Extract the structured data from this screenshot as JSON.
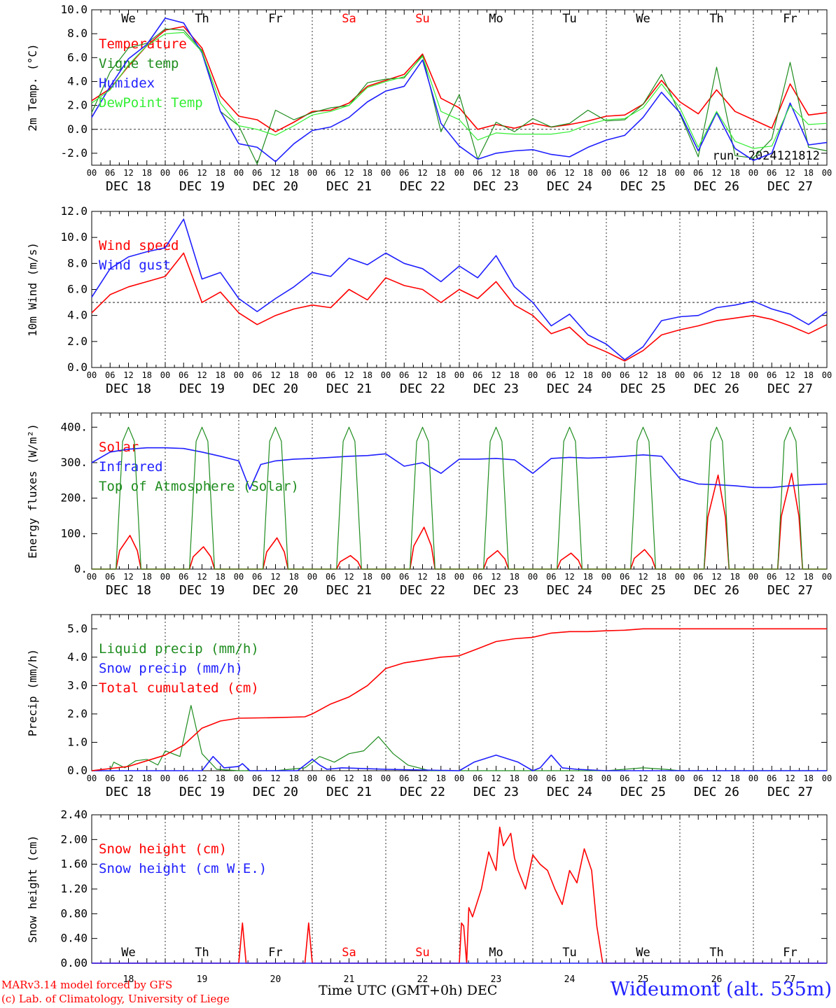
{
  "colors": {
    "red": "#ff0000",
    "green": "#1e8c1e",
    "blue": "#1f1fff",
    "lightgreen": "#33ee33",
    "black": "#000000"
  },
  "day_names": [
    "We",
    "Th",
    "Fr",
    "Sa",
    "Su",
    "Mo",
    "Tu",
    "We",
    "Th",
    "Fr"
  ],
  "weekend_days": [
    3,
    4
  ],
  "hour_labels": [
    "00",
    "06",
    "12",
    "18"
  ],
  "last_hour_label": "00",
  "month": "DEC",
  "dates": [
    "18",
    "19",
    "20",
    "21",
    "22",
    "23",
    "24",
    "25",
    "26",
    "27"
  ],
  "footer": {
    "credit_line1": "MARv3.14 model forced by GFS",
    "credit_line2": "(c) Lab. of Climatology, University of Liege",
    "station": "Wideumont (alt. 535m)",
    "xaxis_title": "Time UTC (GMT+0h)",
    "xaxis_month": "DEC"
  },
  "chart_data": [
    {
      "type": "line",
      "ylabel": "2m Temp. (°C)",
      "ylim": [
        -3,
        10
      ],
      "yticks": [
        "10.0",
        "8.0",
        "6.0",
        "4.0",
        "2.0",
        "0.0",
        "-2.0"
      ],
      "ytick_values": [
        10,
        8,
        6,
        4,
        2,
        0,
        -2
      ],
      "xlim_days": [
        0,
        10
      ],
      "reference_line": 0,
      "day_labels_top": true,
      "run_label": "run: 2024121812",
      "series": [
        {
          "name": "Temperature",
          "color": "red",
          "x": [
            0,
            0.25,
            0.5,
            0.75,
            1,
            1.25,
            1.5,
            1.75,
            2,
            2.25,
            2.5,
            2.75,
            3,
            3.25,
            3.5,
            3.75,
            4,
            4.25,
            4.5,
            4.75,
            5,
            5.25,
            5.5,
            5.75,
            6,
            6.25,
            6.5,
            6.75,
            7,
            7.25,
            7.5,
            7.75,
            8,
            8.25,
            8.5,
            8.75,
            9,
            9.25,
            9.5,
            9.75,
            10
          ],
          "y": [
            2.4,
            3.4,
            5.3,
            7.0,
            8.3,
            8.6,
            6.8,
            2.8,
            1.1,
            0.8,
            -0.2,
            0.6,
            1.5,
            1.6,
            2.2,
            3.6,
            4.1,
            4.6,
            6.3,
            2.6,
            1.8,
            0.0,
            0.4,
            0.1,
            0.5,
            0.2,
            0.4,
            0.7,
            1.1,
            1.2,
            2.1,
            4.1,
            2.3,
            1.3,
            3.3,
            1.5,
            0.8,
            0.1,
            3.8,
            1.2,
            1.4
          ]
        },
        {
          "name": "Vigne temp",
          "color": "green",
          "x": [
            0,
            0.25,
            0.5,
            0.75,
            1,
            1.25,
            1.5,
            1.75,
            2,
            2.25,
            2.5,
            2.75,
            3,
            3.25,
            3.5,
            3.75,
            4,
            4.25,
            4.5,
            4.75,
            5,
            5.25,
            5.5,
            5.75,
            6,
            6.25,
            6.5,
            6.75,
            7,
            7.25,
            7.5,
            7.75,
            8,
            8.25,
            8.5,
            8.75,
            9,
            9.25,
            9.5,
            9.75,
            10
          ],
          "y": [
            1.4,
            4.8,
            6.8,
            7.2,
            8.4,
            8.3,
            6.6,
            1.5,
            0.3,
            -2.9,
            1.6,
            0.8,
            1.4,
            1.8,
            2.0,
            3.9,
            4.2,
            4.3,
            6.2,
            -0.2,
            2.9,
            -2.5,
            0.6,
            -0.2,
            0.9,
            0.2,
            0.5,
            1.6,
            0.7,
            0.8,
            2.1,
            4.6,
            1.3,
            -2.3,
            5.2,
            -2.2,
            -2.4,
            -0.8,
            5.6,
            -1.5,
            -1.8
          ]
        },
        {
          "name": "Humidex",
          "color": "blue",
          "x": [
            0,
            0.25,
            0.5,
            0.75,
            1,
            1.25,
            1.5,
            1.75,
            2,
            2.25,
            2.5,
            2.75,
            3,
            3.25,
            3.5,
            3.75,
            4,
            4.25,
            4.5,
            4.75,
            5,
            5.25,
            5.5,
            5.75,
            6,
            6.25,
            6.5,
            6.75,
            7,
            7.25,
            7.5,
            7.75,
            8,
            8.25,
            8.5,
            8.75,
            9,
            9.25,
            9.5,
            9.75,
            10
          ],
          "y": [
            1.0,
            3.6,
            5.9,
            7.1,
            9.3,
            8.9,
            6.4,
            1.5,
            -1.2,
            -1.5,
            -2.7,
            -1.2,
            -0.1,
            0.2,
            1.0,
            2.3,
            3.2,
            3.6,
            5.8,
            0.5,
            -1.4,
            -2.5,
            -2.0,
            -1.8,
            -1.7,
            -2.1,
            -2.3,
            -1.5,
            -0.9,
            -0.5,
            1.0,
            3.1,
            1.4,
            -1.8,
            1.4,
            -1.6,
            -2.6,
            -2.0,
            2.2,
            -1.3,
            -1.1
          ]
        },
        {
          "name": "DewPoint Temp",
          "color": "lightgreen",
          "x": [
            0,
            0.25,
            0.5,
            0.75,
            1,
            1.25,
            1.5,
            1.75,
            2,
            2.25,
            2.5,
            2.75,
            3,
            3.25,
            3.5,
            3.75,
            4,
            4.25,
            4.5,
            4.75,
            5,
            5.25,
            5.5,
            5.75,
            6,
            6.25,
            6.5,
            6.75,
            7,
            7.25,
            7.5,
            7.75,
            8,
            8.25,
            8.5,
            8.75,
            9,
            9.25,
            9.5,
            9.75,
            10
          ],
          "y": [
            2.2,
            3.3,
            5.4,
            7.0,
            8.0,
            8.1,
            6.5,
            2.2,
            0.3,
            0.0,
            -0.5,
            0.3,
            1.2,
            1.5,
            2.0,
            3.5,
            4.0,
            4.4,
            6.1,
            1.5,
            0.8,
            -0.9,
            -0.3,
            -0.4,
            -0.4,
            -0.4,
            -0.2,
            0.4,
            0.8,
            0.9,
            1.8,
            3.8,
            1.8,
            -1.5,
            1.5,
            -1.0,
            -1.6,
            -1.4,
            2.0,
            0.4,
            0.5
          ]
        }
      ]
    },
    {
      "type": "line",
      "ylabel": "10m Wind (m/s)",
      "ylim": [
        0,
        12
      ],
      "yticks": [
        "12.0",
        "10.0",
        "8.0",
        "6.0",
        "4.0",
        "2.0",
        "0.0"
      ],
      "ytick_values": [
        12,
        10,
        8,
        6,
        4,
        2,
        0
      ],
      "xlim_days": [
        0,
        10
      ],
      "reference_line": 5,
      "series": [
        {
          "name": "Wind speed",
          "color": "red",
          "x": [
            0,
            0.25,
            0.5,
            0.75,
            1,
            1.25,
            1.5,
            1.75,
            2,
            2.25,
            2.5,
            2.75,
            3,
            3.25,
            3.5,
            3.75,
            4,
            4.25,
            4.5,
            4.75,
            5,
            5.25,
            5.5,
            5.75,
            6,
            6.25,
            6.5,
            6.75,
            7,
            7.25,
            7.5,
            7.75,
            8,
            8.25,
            8.5,
            8.75,
            9,
            9.25,
            9.5,
            9.75,
            10
          ],
          "y": [
            4.2,
            5.6,
            6.2,
            6.6,
            7.0,
            8.8,
            5.0,
            5.8,
            4.2,
            3.3,
            4.0,
            4.5,
            4.8,
            4.6,
            6.0,
            5.2,
            6.9,
            6.3,
            6.0,
            5.0,
            6.0,
            5.3,
            6.6,
            4.8,
            4.0,
            2.6,
            3.1,
            1.8,
            1.2,
            0.5,
            1.3,
            2.5,
            2.9,
            3.2,
            3.6,
            3.8,
            4.0,
            3.7,
            3.2,
            2.6,
            3.3
          ]
        },
        {
          "name": "Wind gust",
          "color": "blue",
          "x": [
            0,
            0.25,
            0.5,
            0.75,
            1,
            1.25,
            1.5,
            1.75,
            2,
            2.25,
            2.5,
            2.75,
            3,
            3.25,
            3.5,
            3.75,
            4,
            4.25,
            4.5,
            4.75,
            5,
            5.25,
            5.5,
            5.75,
            6,
            6.25,
            6.5,
            6.75,
            7,
            7.25,
            7.5,
            7.75,
            8,
            8.25,
            8.5,
            8.75,
            9,
            9.25,
            9.5,
            9.75,
            10
          ],
          "y": [
            5.4,
            7.6,
            8.5,
            8.9,
            9.2,
            11.4,
            6.8,
            7.3,
            5.3,
            4.3,
            5.3,
            6.2,
            7.3,
            7.0,
            8.4,
            7.9,
            8.8,
            8.0,
            7.6,
            6.6,
            7.8,
            6.9,
            8.6,
            6.2,
            5.0,
            3.2,
            4.1,
            2.5,
            1.8,
            0.6,
            1.6,
            3.6,
            3.9,
            4.0,
            4.6,
            4.8,
            5.1,
            4.5,
            4.1,
            3.3,
            4.3
          ]
        }
      ]
    },
    {
      "type": "line",
      "ylabel": "Energy fluxes (W/m²)",
      "ylim": [
        0,
        440
      ],
      "yticks": [
        "400.",
        "300.",
        "200.",
        "100.",
        "0."
      ],
      "ytick_values": [
        400,
        300,
        200,
        100,
        0
      ],
      "xlim_days": [
        0,
        10
      ],
      "series": [
        {
          "name": "Solar",
          "color": "red",
          "peaks": [
            95,
            63,
            88,
            38,
            118,
            52,
            45,
            55,
            265,
            270
          ]
        },
        {
          "name": "Infrared",
          "color": "blue",
          "x": [
            0,
            0.25,
            0.5,
            0.75,
            1,
            1.25,
            1.5,
            1.75,
            2,
            2.15,
            2.3,
            2.5,
            2.75,
            3,
            3.25,
            3.5,
            3.75,
            4,
            4.25,
            4.5,
            4.75,
            5,
            5.25,
            5.5,
            5.75,
            6,
            6.25,
            6.5,
            6.75,
            7,
            7.25,
            7.5,
            7.75,
            8,
            8.25,
            8.5,
            8.75,
            9,
            9.25,
            9.5,
            9.75,
            10
          ],
          "y": [
            300,
            330,
            338,
            342,
            342,
            340,
            330,
            318,
            305,
            225,
            295,
            305,
            310,
            312,
            315,
            318,
            320,
            325,
            290,
            300,
            270,
            310,
            310,
            312,
            308,
            270,
            312,
            315,
            313,
            315,
            318,
            322,
            318,
            255,
            240,
            238,
            235,
            230,
            230,
            235,
            238,
            240
          ]
        },
        {
          "name": "Top of Atmosphere (Solar)",
          "color": "green",
          "peaks": [
            400,
            400,
            400,
            400,
            400,
            400,
            400,
            400,
            400,
            400
          ]
        }
      ]
    },
    {
      "type": "line",
      "ylabel": "Precip (mm/h)",
      "ylim": [
        0,
        5.5
      ],
      "yticks": [
        "5.0",
        "4.0",
        "3.0",
        "2.0",
        "1.0",
        "0.0"
      ],
      "ytick_values": [
        5,
        4,
        3,
        2,
        1,
        0
      ],
      "xlim_days": [
        0,
        10
      ],
      "series": [
        {
          "name": "Liquid precip (mm/h)",
          "color": "green",
          "x": [
            0,
            0.25,
            0.3,
            0.45,
            0.6,
            0.75,
            0.9,
            1.0,
            1.2,
            1.35,
            1.5,
            1.7,
            2.0,
            2.5,
            2.9,
            3.0,
            3.1,
            3.3,
            3.5,
            3.7,
            3.9,
            4.0,
            4.1,
            4.3,
            4.6,
            5.0,
            6.0,
            7.0,
            7.5,
            7.8,
            8.0,
            10.0
          ],
          "y": [
            0,
            0,
            0.3,
            0.1,
            0.35,
            0.4,
            0.2,
            0.7,
            0.5,
            2.3,
            0.6,
            0.05,
            0,
            0,
            0.1,
            0.3,
            0.5,
            0.3,
            0.6,
            0.7,
            1.2,
            0.9,
            0.6,
            0.2,
            0,
            0,
            0,
            0,
            0.1,
            0.05,
            0,
            0
          ]
        },
        {
          "name": "Snow precip (mm/h)",
          "color": "blue",
          "x": [
            0,
            1.5,
            1.65,
            1.8,
            2.0,
            2.05,
            2.15,
            2.8,
            3.0,
            3.1,
            3.2,
            3.4,
            4.0,
            5.0,
            5.2,
            5.5,
            5.8,
            6.0,
            6.1,
            6.25,
            6.4,
            6.6,
            7.0,
            10.0
          ],
          "y": [
            0,
            0,
            0.5,
            0.1,
            0.15,
            0.25,
            0,
            0,
            0.4,
            0.2,
            0.05,
            0.1,
            0.05,
            0,
            0.3,
            0.55,
            0.3,
            0,
            0.1,
            0.55,
            0.1,
            0.05,
            0,
            0
          ]
        },
        {
          "name": "Total cumulated (cm)",
          "color": "red",
          "x": [
            0,
            0.5,
            1.0,
            1.25,
            1.5,
            1.75,
            2.0,
            2.5,
            2.9,
            3.0,
            3.25,
            3.5,
            3.75,
            4.0,
            4.25,
            4.5,
            4.75,
            5.0,
            5.25,
            5.5,
            5.75,
            6.0,
            6.25,
            6.5,
            6.75,
            7.0,
            7.25,
            7.5,
            8.0,
            9.0,
            10.0
          ],
          "y": [
            0,
            0.15,
            0.55,
            0.9,
            1.5,
            1.75,
            1.85,
            1.87,
            1.9,
            2.0,
            2.35,
            2.6,
            3.0,
            3.6,
            3.8,
            3.9,
            4.0,
            4.05,
            4.3,
            4.55,
            4.65,
            4.7,
            4.85,
            4.9,
            4.9,
            4.93,
            4.95,
            5.0,
            5.0,
            5.0,
            5.0
          ]
        }
      ]
    },
    {
      "type": "line",
      "ylabel": "Snow height (cm)",
      "ylim": [
        0,
        2.4
      ],
      "yticks": [
        "2.40",
        "2.00",
        "1.60",
        "1.20",
        "0.80",
        "0.40",
        "0.00"
      ],
      "ytick_values": [
        2.4,
        2.0,
        1.6,
        1.2,
        0.8,
        0.4,
        0.0
      ],
      "xlim_days": [
        0,
        10
      ],
      "day_labels_bottom": true,
      "series": [
        {
          "name": "Snow height (cm)",
          "color": "red",
          "x": [
            0,
            2.0,
            2.05,
            2.1,
            2.15,
            2.9,
            2.95,
            3.0,
            3.05,
            5.0,
            5.03,
            5.06,
            5.1,
            5.13,
            5.18,
            5.3,
            5.4,
            5.5,
            5.55,
            5.6,
            5.7,
            5.75,
            5.8,
            5.9,
            6.0,
            6.1,
            6.2,
            6.3,
            6.4,
            6.5,
            6.6,
            6.7,
            6.8,
            6.87,
            6.95,
            10.0
          ],
          "y": [
            0,
            0,
            0.65,
            0,
            0,
            0,
            0.65,
            0,
            0,
            0,
            0.65,
            0.6,
            0,
            0.9,
            0.75,
            1.2,
            1.8,
            1.5,
            2.2,
            1.9,
            2.1,
            1.7,
            1.5,
            1.2,
            1.75,
            1.6,
            1.5,
            1.2,
            0.95,
            1.5,
            1.3,
            1.85,
            1.5,
            0.6,
            0,
            0
          ]
        },
        {
          "name": "Snow height (cm W.E.)",
          "color": "blue",
          "x": [
            0,
            10
          ],
          "y": [
            0,
            0
          ]
        }
      ]
    }
  ]
}
